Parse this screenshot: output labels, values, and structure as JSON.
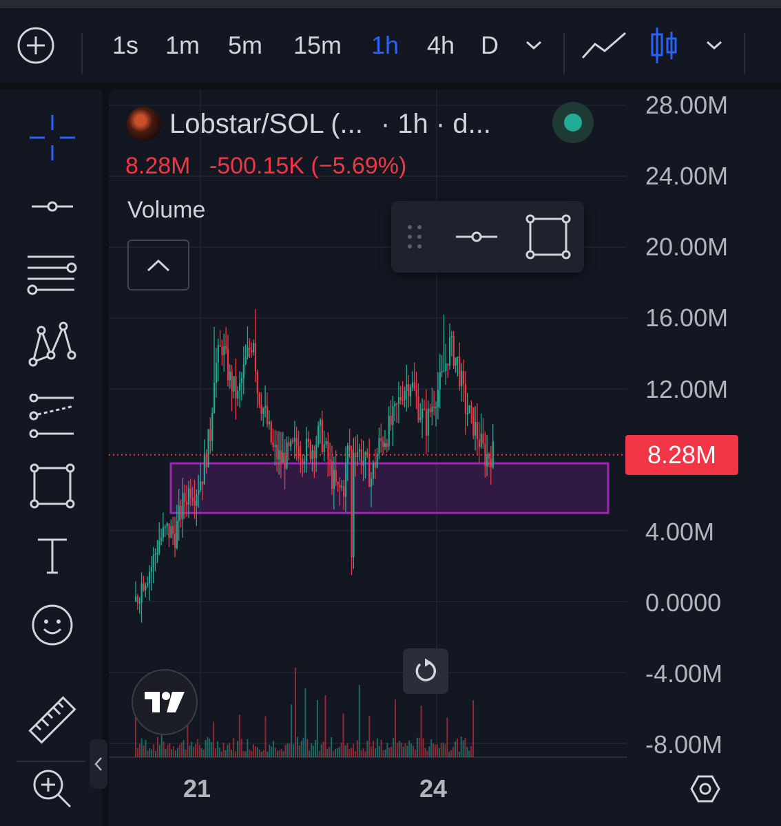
{
  "toolbar": {
    "intervals": [
      "1s",
      "1m",
      "5m",
      "15m",
      "1h",
      "4h",
      "D"
    ],
    "active_interval": "1h"
  },
  "legend": {
    "symbol": "Lobstar/SOL (...",
    "meta": "· 1h · d...",
    "last_value": "8.28M",
    "change": "-500.15K (−5.69%)",
    "indicator": "Volume"
  },
  "price_axis": {
    "labels": [
      "28.00M",
      "24.00M",
      "20.00M",
      "16.00M",
      "12.00M",
      "8.28M",
      "4.00M",
      "0.0000",
      "-4.00M",
      "-8.00M"
    ],
    "current_price_tag": "8.28M"
  },
  "time_axis": {
    "labels": [
      "21",
      "24"
    ]
  },
  "colors": {
    "up": "#22ab94",
    "down": "#f23645",
    "active": "#2962ff",
    "zone_border": "#9c27b0",
    "zone_fill": "rgba(156,39,176,0.22)"
  },
  "icons": {
    "add": "plus-circle-icon",
    "chart_type_line": "line-chart-icon",
    "chart_type_candles": "candles-icon",
    "zoom": "zoom-in-icon",
    "reset": "reset-icon",
    "settings": "settings-icon",
    "logo": "tradingview-logo"
  },
  "chart_data": {
    "type": "candlestick",
    "ylim": [
      -8000000,
      28000000
    ],
    "yticks": [
      28000000,
      24000000,
      20000000,
      16000000,
      12000000,
      4000000,
      0,
      -4000000,
      -8000000
    ],
    "last_value": 8280000,
    "xticks": [
      "21",
      "24"
    ],
    "rectangle_zone": {
      "low": 5000000,
      "high": 7800000
    }
  }
}
